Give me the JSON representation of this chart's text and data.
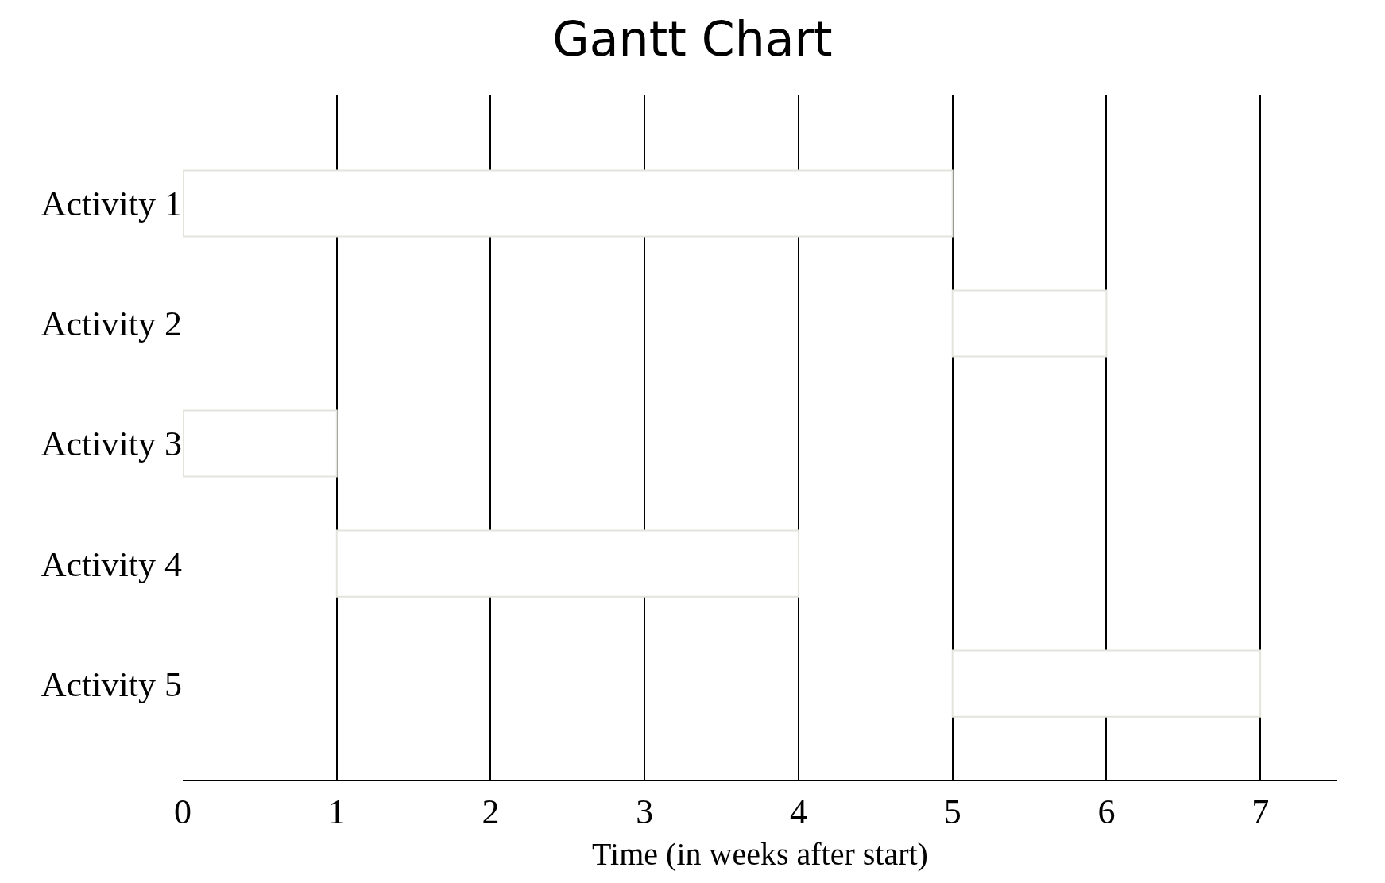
{
  "chart_data": {
    "type": "bar",
    "title": "Gantt Chart",
    "xlabel": "Time (in weeks after start)",
    "orientation": "horizontal",
    "categories": [
      "Activity 1",
      "Activity 2",
      "Activity 3",
      "Activity 4",
      "Activity 5"
    ],
    "values": [
      5,
      1,
      1,
      3,
      2
    ],
    "base": [
      0,
      5,
      0,
      1,
      5
    ],
    "color": "#ffffff",
    "xlim": [
      0,
      7.5
    ],
    "xticks": [
      0,
      1,
      2,
      3,
      4,
      5,
      6,
      7
    ],
    "grid": "x",
    "legend": false
  }
}
